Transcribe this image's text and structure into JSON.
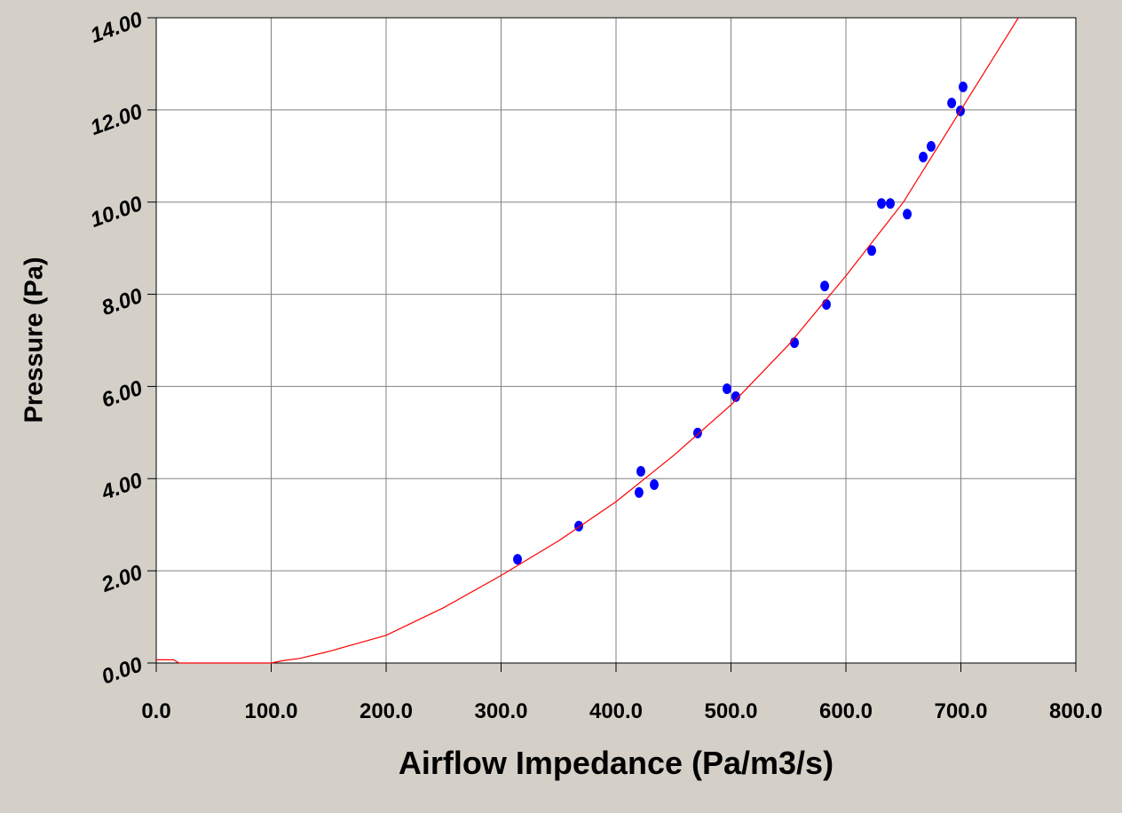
{
  "chart_data": {
    "type": "scatter",
    "x_label": "Airflow Impedance (Pa/m3/s)",
    "y_label": "Pressure (Pa)",
    "xlim": [
      0,
      800
    ],
    "ylim": [
      0,
      14
    ],
    "xticks": [
      {
        "value": 0,
        "label": "0.0"
      },
      {
        "value": 100,
        "label": "100.0"
      },
      {
        "value": 200,
        "label": "200.0"
      },
      {
        "value": 300,
        "label": "300.0"
      },
      {
        "value": 400,
        "label": "400.0"
      },
      {
        "value": 500,
        "label": "500.0"
      },
      {
        "value": 600,
        "label": "600.0"
      },
      {
        "value": 700,
        "label": "700.0"
      },
      {
        "value": 800,
        "label": "800.0"
      }
    ],
    "yticks": [
      {
        "value": 0,
        "label": "0.00"
      },
      {
        "value": 2,
        "label": "2.00"
      },
      {
        "value": 4,
        "label": "4.00"
      },
      {
        "value": 6,
        "label": "6.00"
      },
      {
        "value": 8,
        "label": "8.00"
      },
      {
        "value": 10,
        "label": "10.00"
      },
      {
        "value": 12,
        "label": "12.00"
      },
      {
        "value": 14,
        "label": "14.00"
      }
    ],
    "grid": true,
    "series": [
      {
        "type": "scatter",
        "color": "#0000ff",
        "x": [
          314.3,
          367.6,
          420,
          421.6,
          433.2,
          471,
          496.5,
          504.2,
          555.2,
          581.5,
          583,
          622.4,
          630.9,
          638.6,
          653.3,
          667.2,
          674.1,
          692,
          699.6,
          701.9
        ],
        "values": [
          2.25,
          2.97,
          3.7,
          4.16,
          3.87,
          4.99,
          5.95,
          5.78,
          6.95,
          8.18,
          7.78,
          8.95,
          9.97,
          9.97,
          9.74,
          10.98,
          11.21,
          12.15,
          11.98,
          12.5
        ]
      },
      {
        "type": "line",
        "color": "#ff0000",
        "x": [
          0,
          15,
          20,
          100,
          110,
          125,
          150,
          200,
          250,
          300,
          350,
          400,
          450,
          500,
          550,
          600,
          650,
          700,
          750
        ],
        "values": [
          0.07,
          0.07,
          0,
          0,
          0.05,
          0.1,
          0.25,
          0.6,
          1.2,
          1.9,
          2.65,
          3.5,
          4.5,
          5.6,
          6.9,
          8.4,
          10.0,
          12.0,
          14.0
        ]
      }
    ]
  }
}
